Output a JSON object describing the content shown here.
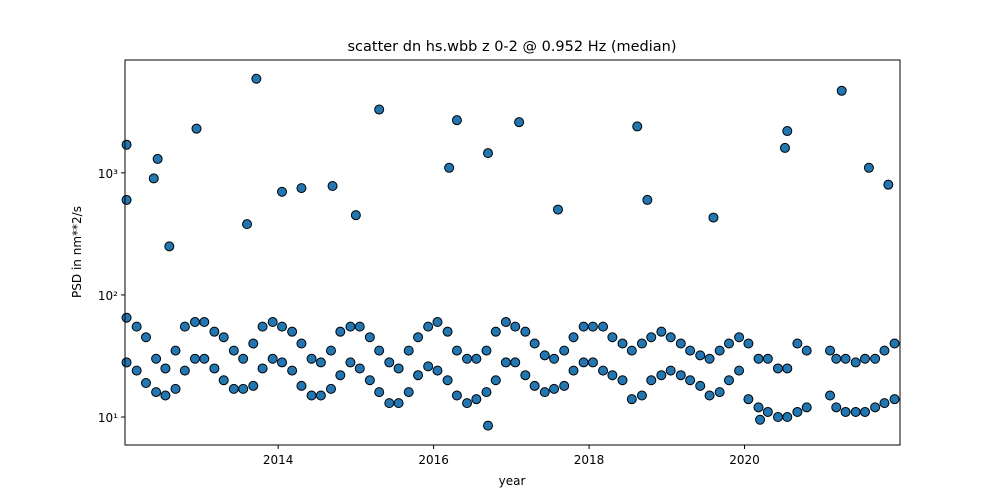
{
  "chart_data": {
    "type": "scatter",
    "title": "scatter dn hs.wbb z 0-2 @ 0.952 Hz (median)",
    "x_label": "year",
    "y_label": "PSD in nm**2/s",
    "color": "#1f77b4",
    "edgecolor": "#000000",
    "log_y": true,
    "xlim": [
      2012.03,
      2022.0
    ],
    "ylim": [
      5.9,
      8400
    ],
    "xticks": [
      2014,
      2016,
      2018,
      2020
    ],
    "yticks": [
      {
        "value": 10,
        "label": "10¹"
      },
      {
        "value": 100,
        "label": "10²"
      },
      {
        "value": 1000,
        "label": "10³"
      }
    ],
    "x": [
      2012.05,
      2012.18,
      2012.3,
      2012.43,
      2012.55,
      2012.68,
      2012.8,
      2012.93,
      2012.05,
      2012.18,
      2012.3,
      2012.43,
      2012.55,
      2012.68,
      2012.8,
      2012.93,
      2013.05,
      2013.18,
      2013.3,
      2013.43,
      2013.55,
      2013.68,
      2013.8,
      2013.93,
      2013.05,
      2013.18,
      2013.3,
      2013.43,
      2013.55,
      2013.68,
      2013.8,
      2013.93,
      2014.05,
      2014.18,
      2014.3,
      2014.43,
      2014.55,
      2014.68,
      2014.8,
      2014.93,
      2014.05,
      2014.18,
      2014.3,
      2014.43,
      2014.55,
      2014.68,
      2014.8,
      2014.93,
      2015.05,
      2015.18,
      2015.3,
      2015.43,
      2015.55,
      2015.68,
      2015.8,
      2015.93,
      2015.05,
      2015.18,
      2015.3,
      2015.43,
      2015.55,
      2015.68,
      2015.8,
      2015.93,
      2016.05,
      2016.18,
      2016.3,
      2016.43,
      2016.55,
      2016.68,
      2016.8,
      2016.93,
      2016.05,
      2016.18,
      2016.3,
      2016.43,
      2016.55,
      2016.68,
      2016.8,
      2016.93,
      2017.05,
      2017.18,
      2017.3,
      2017.43,
      2017.55,
      2017.68,
      2017.8,
      2017.93,
      2017.05,
      2017.18,
      2017.3,
      2017.43,
      2017.55,
      2017.68,
      2017.8,
      2017.93,
      2018.05,
      2018.18,
      2018.3,
      2018.43,
      2018.55,
      2018.68,
      2018.8,
      2018.93,
      2018.05,
      2018.18,
      2018.3,
      2018.43,
      2018.55,
      2018.68,
      2018.8,
      2018.93,
      2019.05,
      2019.18,
      2019.3,
      2019.43,
      2019.55,
      2019.68,
      2019.8,
      2019.93,
      2019.05,
      2019.18,
      2019.3,
      2019.43,
      2019.55,
      2019.68,
      2019.8,
      2019.93,
      2020.05,
      2020.18,
      2020.3,
      2020.43,
      2020.55,
      2020.68,
      2020.8,
      2020.05,
      2020.18,
      2020.3,
      2020.43,
      2020.55,
      2020.68,
      2020.8,
      2021.1,
      2021.18,
      2021.3,
      2021.43,
      2021.55,
      2021.68,
      2021.8,
      2021.93,
      2021.1,
      2021.18,
      2021.3,
      2021.43,
      2021.55,
      2021.68,
      2021.8,
      2021.93,
      2012.05,
      2012.05,
      2012.45,
      2012.4,
      2012.95,
      2013.72,
      2015.3,
      2016.3,
      2017.1,
      2018.62,
      2020.55,
      2020.52,
      2021.25,
      2021.6,
      2016.7,
      2016.2,
      2014.3,
      2014.7,
      2016.7,
      2020.2,
      2013.6,
      2015.0,
      2017.6,
      2019.6,
      2021.85,
      2014.05,
      2018.75,
      2012.6
    ],
    "values": [
      28,
      24,
      19,
      16,
      15,
      17,
      24,
      30,
      65,
      55,
      45,
      30,
      25,
      35,
      55,
      60,
      30,
      25,
      20,
      17,
      17,
      18,
      25,
      30,
      60,
      50,
      45,
      35,
      30,
      40,
      55,
      60,
      28,
      24,
      18,
      15,
      15,
      17,
      22,
      28,
      55,
      50,
      40,
      30,
      28,
      35,
      50,
      55,
      25,
      20,
      16,
      13,
      13,
      16,
      22,
      26,
      55,
      45,
      35,
      28,
      25,
      35,
      45,
      55,
      24,
      20,
      15,
      13,
      14,
      16,
      20,
      28,
      60,
      50,
      35,
      30,
      30,
      35,
      50,
      60,
      28,
      22,
      18,
      16,
      17,
      18,
      24,
      28,
      55,
      50,
      40,
      32,
      30,
      35,
      45,
      55,
      28,
      24,
      22,
      20,
      14,
      15,
      20,
      22,
      55,
      55,
      45,
      40,
      35,
      40,
      45,
      50,
      24,
      22,
      20,
      18,
      15,
      16,
      20,
      24,
      45,
      40,
      35,
      32,
      30,
      35,
      40,
      45,
      14,
      12,
      11,
      10,
      10,
      11,
      12,
      40,
      30,
      30,
      25,
      25,
      40,
      35,
      15,
      12,
      11,
      11,
      11,
      12,
      13,
      14,
      35,
      30,
      30,
      28,
      30,
      30,
      35,
      40,
      1700,
      600,
      1300,
      900,
      2300,
      5900,
      3300,
      2700,
      2600,
      2400,
      2200,
      1600,
      4700,
      1100,
      1450,
      1100,
      750,
      780,
      8.5,
      9.5,
      380,
      450,
      500,
      430,
      800,
      700,
      600,
      250
    ]
  }
}
